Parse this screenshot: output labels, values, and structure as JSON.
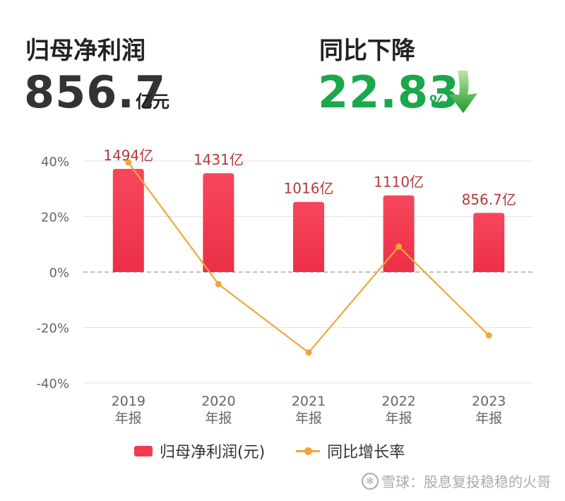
{
  "header": {
    "left": {
      "label": "归母净利润",
      "value": "856.7",
      "unit": "亿元"
    },
    "right": {
      "label": "同比下降",
      "value": "22.83",
      "unit": "%"
    }
  },
  "colors": {
    "bar": "#f03a50",
    "line": "#f0a63a",
    "value_green": "#1aa84a",
    "bar_label": "#b23a3a"
  },
  "chart_data": {
    "type": "bar",
    "categories": [
      "2019\n年报",
      "2020\n年报",
      "2021\n年报",
      "2022\n年报",
      "2023\n年报"
    ],
    "y_ticks": [
      "40%",
      "20%",
      "0%",
      "-20%",
      "-40%"
    ],
    "ylim": [
      -40,
      40
    ],
    "grid": true,
    "legend_position": "bottom",
    "series": [
      {
        "name": "归母净利润(元)",
        "type": "bar",
        "values": [
          1494,
          1431,
          1016,
          1110,
          856.7
        ],
        "labels": [
          "1494亿",
          "1431亿",
          "1016亿",
          "1110亿",
          "856.7亿"
        ]
      },
      {
        "name": "同比增长率",
        "type": "line",
        "values": [
          39.5,
          -4.4,
          -29.0,
          9.2,
          -22.83
        ]
      }
    ]
  },
  "watermark": {
    "icon": "snowball-logo-icon",
    "text": "雪球：股息复投稳稳的火哥"
  }
}
